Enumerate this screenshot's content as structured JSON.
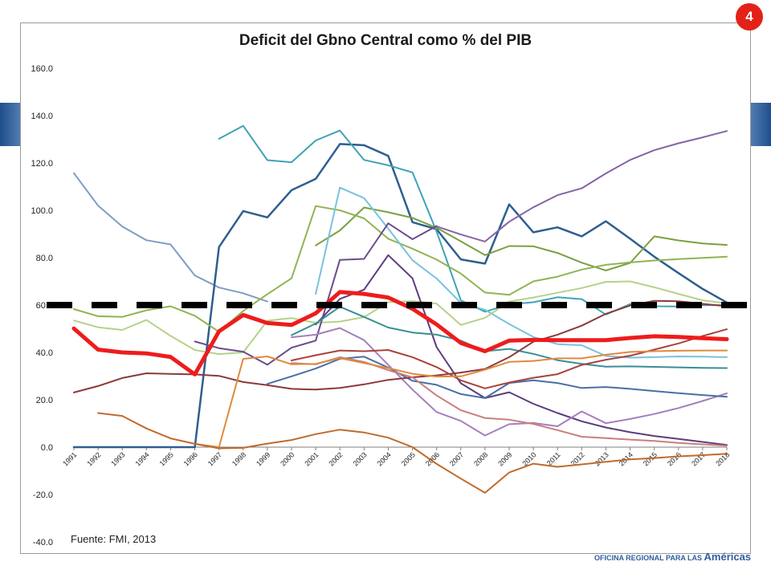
{
  "slide": {
    "badge": "4",
    "source_note": "Fuente: FMI, 2013",
    "logo_small": "OFICINA REGIONAL PARA LAS",
    "logo_big": "Américas"
  },
  "chart_data": {
    "type": "line",
    "title": "Deficit del Gbno Central como % del PIB",
    "xlabel": "",
    "ylabel": "",
    "ylim": [
      -40,
      160
    ],
    "yticks": [
      160,
      140,
      120,
      100,
      80,
      60,
      40,
      20,
      0,
      -20,
      -40
    ],
    "ytick_labels": [
      "160.0",
      "140.0",
      "120.0",
      "100.0",
      "80.0",
      "60.0",
      "40.0",
      "20.0",
      "0.0",
      "-20.0",
      "-40.0"
    ],
    "x": [
      1991,
      1992,
      1993,
      1994,
      1995,
      1996,
      1997,
      1998,
      1999,
      2000,
      2001,
      2002,
      2003,
      2004,
      2005,
      2006,
      2007,
      2008,
      2009,
      2010,
      2011,
      2012,
      2013,
      2014,
      2015,
      2016,
      2017,
      2018
    ],
    "grid": false,
    "legend": "none",
    "reference_line": {
      "y": 60,
      "style": "dashed",
      "color": "#000000"
    },
    "series": [
      {
        "color": "#7f9cc5",
        "width": 2,
        "values": [
          115.7,
          102,
          93.2,
          87.4,
          85.6,
          72.5,
          67.4,
          65,
          61.5,
          null,
          null,
          null,
          null,
          null,
          null,
          null,
          null,
          null,
          null,
          null,
          null,
          null,
          null,
          null,
          null,
          null,
          null,
          null
        ]
      },
      {
        "color": "#2e5f8f",
        "width": 2.5,
        "values": [
          0,
          0,
          0,
          0,
          0,
          0,
          84.5,
          99.7,
          97,
          108.5,
          113.3,
          128,
          127.5,
          123,
          95,
          92,
          79.3,
          77.5,
          102.5,
          90.7,
          92.8,
          89,
          95.4,
          88,
          80.4,
          73.5,
          66.8,
          61.1
        ]
      },
      {
        "color": "#3fa3b5",
        "width": 2,
        "values": [
          null,
          null,
          null,
          null,
          null,
          null,
          130.2,
          135.7,
          121.2,
          120.3,
          129.5,
          133.7,
          121.3,
          119,
          116,
          91,
          62,
          57.2,
          60.3,
          61.2,
          63.3,
          62.5,
          56,
          60.4,
          59.5,
          59.4,
          59.9,
          60
        ]
      },
      {
        "color": "#8664a6",
        "width": 2,
        "values": [
          null,
          null,
          null,
          null,
          null,
          null,
          null,
          null,
          null,
          null,
          null,
          null,
          null,
          null,
          null,
          93.2,
          89.8,
          86.8,
          95.2,
          101.3,
          106.4,
          109.3,
          115.6,
          121.3,
          125.4,
          128.3,
          130.8,
          133.5
        ]
      },
      {
        "color": "#7aa040",
        "width": 2,
        "values": [
          null,
          null,
          null,
          null,
          null,
          null,
          null,
          null,
          null,
          null,
          85.2,
          91.5,
          101.2,
          99.2,
          96.8,
          92.6,
          86.9,
          81.1,
          84.9,
          84.8,
          82,
          77.9,
          74.6,
          77.8,
          89,
          87.3,
          86,
          85.4
        ]
      },
      {
        "color": "#8fb453",
        "width": 2,
        "values": [
          58.3,
          55.3,
          55,
          57.8,
          59.5,
          55.5,
          48.7,
          57.5,
          64.6,
          71.3,
          101.8,
          100,
          96.6,
          88,
          83.8,
          79.2,
          73.3,
          65.3,
          64.3,
          70,
          72,
          75,
          77,
          78,
          78.8,
          79.4,
          79.9,
          80.4
        ]
      },
      {
        "color": "#79c2de",
        "width": 2,
        "values": [
          null,
          null,
          null,
          null,
          null,
          null,
          null,
          null,
          null,
          null,
          64.7,
          109.6,
          105.2,
          92.3,
          78.9,
          71.2,
          60.9,
          58,
          52,
          46.5,
          43.5,
          43,
          38.5,
          37.8,
          38,
          38.3,
          38.2,
          38
        ]
      },
      {
        "color": "#b6d18a",
        "width": 2,
        "values": [
          53.5,
          50.6,
          49.5,
          53.7,
          47,
          41,
          39.3,
          40,
          53.4,
          54.5,
          52.5,
          53,
          54.9,
          61.2,
          61.7,
          60.6,
          51.6,
          54.6,
          61.5,
          63.2,
          65.2,
          67.2,
          69.8,
          70,
          67.5,
          64.7,
          62,
          60.7
        ]
      },
      {
        "color": "#6a4c8c",
        "width": 2,
        "values": [
          null,
          null,
          null,
          null,
          null,
          44.6,
          41.8,
          40.3,
          34.8,
          42,
          45,
          79.1,
          79.5,
          94.5,
          87.8,
          93.4,
          null,
          null,
          null,
          null,
          null,
          null,
          null,
          null,
          null,
          null,
          null,
          null
        ]
      },
      {
        "color": "#5c3c7e",
        "width": 2,
        "values": [
          null,
          null,
          null,
          null,
          null,
          null,
          null,
          null,
          null,
          null,
          51.8,
          62.6,
          66.5,
          81.1,
          71.3,
          42.2,
          27,
          20.7,
          23.2,
          18.3,
          14.4,
          10.9,
          8.3,
          6.3,
          4.7,
          3.5,
          2.2,
          0.9
        ]
      },
      {
        "color": "#a57fbd",
        "width": 2,
        "values": [
          null,
          null,
          null,
          null,
          null,
          null,
          null,
          null,
          null,
          46.4,
          47.5,
          50.3,
          45.2,
          34.7,
          24.3,
          14.8,
          11.1,
          4.9,
          9.7,
          10.2,
          8.8,
          15.1,
          10.1,
          11.9,
          14,
          16.5,
          19.5,
          22.7
        ]
      },
      {
        "color": "#4a6fa5",
        "width": 2,
        "values": [
          null,
          null,
          null,
          null,
          null,
          null,
          null,
          null,
          26.7,
          29.9,
          33.2,
          37.3,
          38.2,
          33.6,
          28,
          26.3,
          22.4,
          20.7,
          27.1,
          28.2,
          27.1,
          25,
          25.4,
          24.6,
          23.7,
          22.8,
          22,
          21.3
        ]
      },
      {
        "color": "#3a8e96",
        "width": 2,
        "values": [
          null,
          null,
          null,
          null,
          null,
          null,
          null,
          null,
          null,
          47.3,
          52.2,
          59.3,
          55,
          50.5,
          48.4,
          47.5,
          45,
          40.5,
          41.5,
          39.4,
          36.7,
          35.2,
          34,
          34.1,
          33.9,
          33.7,
          33.5,
          33.4
        ]
      },
      {
        "color": "#8b3a3a",
        "width": 2,
        "values": [
          23.1,
          25.8,
          29.2,
          31.2,
          30.9,
          30.7,
          30.1,
          27.5,
          26.2,
          24.6,
          24.3,
          25,
          26.5,
          28.4,
          29.5,
          30.3,
          31.5,
          33,
          38,
          44.5,
          47.5,
          51.3,
          56.3,
          59.8,
          61.8,
          61.6,
          60.5,
          59.5
        ]
      },
      {
        "color": "#a8423e",
        "width": 2,
        "values": [
          null,
          null,
          null,
          null,
          null,
          null,
          null,
          null,
          null,
          36.6,
          38.8,
          40.8,
          40.5,
          41,
          38,
          33.8,
          28.2,
          24.8,
          27.3,
          29.3,
          30.8,
          34.7,
          36.9,
          38.6,
          41.2,
          43.8,
          46.9,
          49.8
        ]
      },
      {
        "color": "#c97f7f",
        "width": 2,
        "values": [
          null,
          null,
          null,
          null,
          null,
          null,
          null,
          null,
          null,
          35.5,
          35,
          38,
          36,
          32.5,
          29.5,
          21.8,
          15.6,
          12.3,
          11.6,
          9.8,
          7.2,
          4.4,
          3.8,
          3.2,
          2.6,
          1.8,
          1.2,
          0.6
        ]
      },
      {
        "color": "#e08a3c",
        "width": 2,
        "values": [
          null,
          null,
          null,
          null,
          null,
          1.4,
          0,
          37.3,
          38.3,
          35,
          35.2,
          37.6,
          35.5,
          33.4,
          31,
          29.8,
          29.9,
          32.7,
          36,
          36.4,
          37.5,
          37.5,
          39,
          40.2,
          40.5,
          40.7,
          40.8,
          40.8
        ]
      },
      {
        "color": "#c06b2c",
        "width": 2,
        "values": [
          null,
          14.4,
          13.2,
          7.9,
          3.7,
          1.4,
          -0.5,
          -0.3,
          1.5,
          3,
          5.5,
          7.4,
          6.2,
          4,
          0,
          -7.1,
          -13.3,
          -19.3,
          -10.7,
          -7,
          -8.3,
          -7.3,
          -6.2,
          -5.2,
          -4.6,
          -3.9,
          -3.4,
          -2.8
        ]
      },
      {
        "color": "#ee1c1c",
        "width": 5,
        "values": [
          50.1,
          41.2,
          40,
          39.6,
          38.1,
          30.7,
          48.9,
          55.8,
          52.4,
          51.6,
          56.5,
          65.5,
          64.7,
          63.2,
          58.4,
          51.8,
          44,
          40.5,
          45,
          45.3,
          45.2,
          45.2,
          45.2,
          46.1,
          46.8,
          46.5,
          46,
          45.6
        ]
      }
    ]
  }
}
